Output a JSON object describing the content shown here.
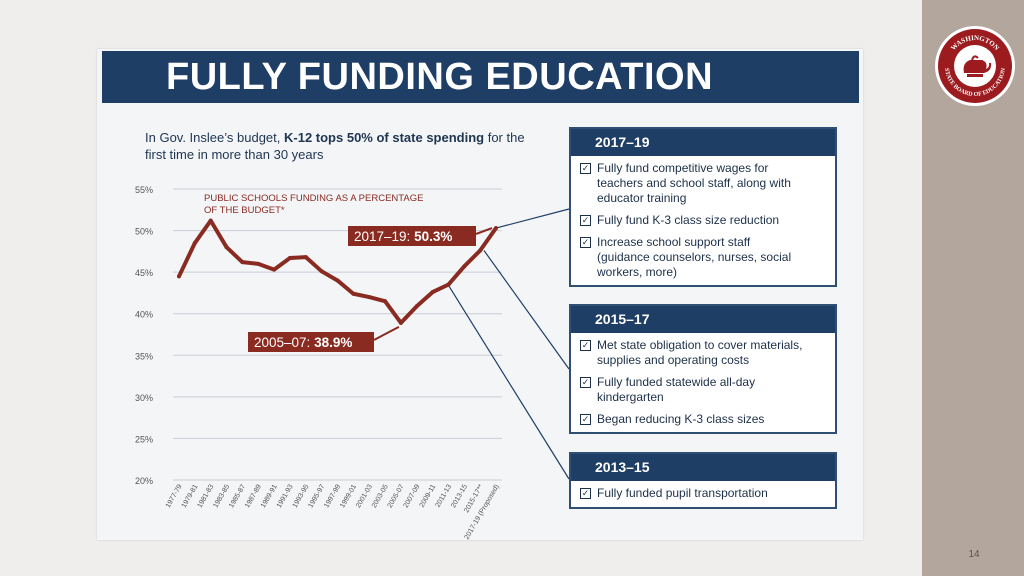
{
  "slide": {
    "number": "14",
    "seal": {
      "icon": "washington-state-board-of-education-seal",
      "text_top": "WASHINGTON",
      "text_bottom": "STATE BOARD OF EDUCATION",
      "color": "#9b1b1f"
    }
  },
  "infographic": {
    "title": "FULLY FUNDING EDUCATION",
    "subtitle_prefix": "In Gov. Inslee’s budget, ",
    "subtitle_bold": "K-12 tops 50% of state spending",
    "subtitle_suffix": " for the first time in more than 30 years",
    "colors": {
      "navy": "#1f3e66",
      "line": "#8a2b22",
      "bg": "#f3f5f7"
    }
  },
  "chart_data": {
    "type": "line",
    "title": "PUBLIC SCHOOLS FUNDING AS A PERCENTAGE OF THE BUDGET*",
    "ylim": [
      20,
      55
    ],
    "yticks": [
      "55%",
      "50%",
      "45%",
      "40%",
      "35%",
      "30%",
      "25%",
      "20%"
    ],
    "grid": true,
    "x": [
      "1977-79",
      "1979-81",
      "1981-83",
      "1983-85",
      "1985-87",
      "1987-89",
      "1989-91",
      "1991-93",
      "1993-95",
      "1995-97",
      "1997-99",
      "1999-01",
      "2001-03",
      "2003-05",
      "2005-07",
      "2007-09",
      "2009-11",
      "2011-13",
      "2013-15",
      "2015-17**",
      "2017-19 (Proposed)"
    ],
    "series": [
      {
        "values": [
          44.5,
          48.5,
          51.2,
          48.0,
          46.2,
          46.0,
          45.3,
          46.7,
          46.8,
          45.1,
          44.0,
          42.4,
          42.0,
          41.5,
          38.9,
          40.9,
          42.6,
          43.5,
          45.7,
          47.6,
          50.3
        ]
      }
    ],
    "annotations": [
      {
        "text_prefix": "2017–19: ",
        "text_value": "50.3%"
      },
      {
        "text_prefix": "2005–07: ",
        "text_value": "38.9%"
      }
    ]
  },
  "boxes": [
    {
      "title": "2017–19",
      "items": [
        [
          "Fully fund competitive wages for",
          "teachers and school staff, along with",
          "educator training"
        ],
        [
          "Fully fund K-3 class size reduction"
        ],
        [
          "Increase school support staff",
          "(guidance counselors, nurses, social",
          "workers, more)"
        ]
      ]
    },
    {
      "title": "2015–17",
      "items": [
        [
          "Met state obligation to cover materials,",
          "supplies and operating costs"
        ],
        [
          "Fully funded statewide all-day",
          "kindergarten"
        ],
        [
          "Began reducing K-3 class sizes"
        ]
      ]
    },
    {
      "title": "2013–15",
      "items": [
        [
          "Fully funded pupil transportation"
        ]
      ]
    }
  ]
}
